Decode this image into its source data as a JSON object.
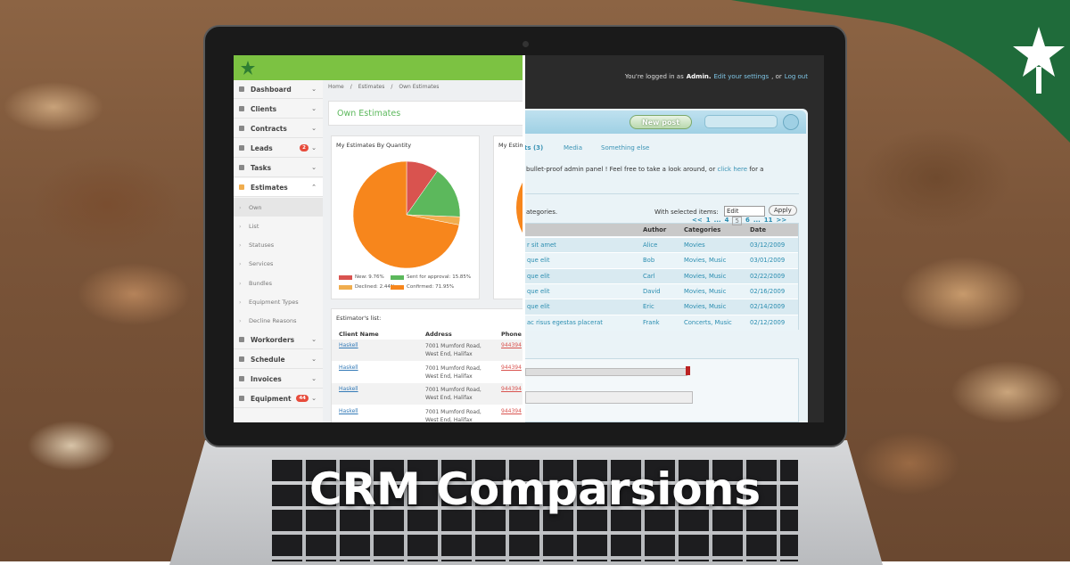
{
  "title": "CRM Comparsions",
  "left_app": {
    "sidebar": [
      {
        "label": "Dashboard"
      },
      {
        "label": "Clients"
      },
      {
        "label": "Contracts"
      },
      {
        "label": "Leads",
        "badge": "2"
      },
      {
        "label": "Tasks"
      },
      {
        "label": "Estimates"
      }
    ],
    "estimates_submenu": [
      "Own",
      "List",
      "Statuses",
      "Services",
      "Bundles",
      "Equipment Types",
      "Decline Reasons"
    ],
    "sidebar_bottom": [
      {
        "label": "Workorders"
      },
      {
        "label": "Schedule"
      },
      {
        "label": "Invoices"
      },
      {
        "label": "Equipment",
        "badge": "44"
      }
    ],
    "breadcrumb": [
      "Home",
      "Estimates",
      "Own Estimates"
    ],
    "heading": "Own Estimates",
    "pie": {
      "title": "My Estimates By Quantity",
      "slices": [
        {
          "label": "New: 9.76%",
          "value": 9.76,
          "color": "#d9534f"
        },
        {
          "label": "Sent for approval: 15.85%",
          "value": 15.85,
          "color": "#5cb85c"
        },
        {
          "label": "Declined: 2.44%",
          "value": 2.44,
          "color": "#f0ad4e"
        },
        {
          "label": "Confirmed: 71.95%",
          "value": 71.95,
          "color": "#f7861c"
        }
      ]
    },
    "second_panel_title": "My Estimates",
    "estimators_list": {
      "title": "Estimator's list:",
      "columns": [
        "Client Name",
        "Address",
        "Phone"
      ],
      "rows": [
        [
          "Haskell",
          "7001 Mumford Road, West End, Halifax",
          "944394"
        ],
        [
          "Haskell",
          "7001 Mumford Road, West End, Halifax",
          "944394"
        ],
        [
          "Haskell",
          "7001 Mumford Road, West End, Halifax",
          "944394"
        ],
        [
          "Haskell",
          "7001 Mumford Road, West End, Halifax",
          "944394"
        ]
      ]
    }
  },
  "right_app": {
    "login": [
      "You're logged in as",
      "Admin.",
      "Edit your settings",
      ", or",
      "Log out"
    ],
    "new_post": "New post",
    "tabs": [
      "ts (3)",
      "Media",
      "Something else"
    ],
    "intro": [
      "bullet-proof admin panel ! Feel free to take a look around, or",
      "click here",
      "for a"
    ],
    "categories_note": "ategories.",
    "with_selected": "With selected items:",
    "select_value": "Edit",
    "apply": "Apply",
    "columns": [
      "Author",
      "Categories",
      "Date"
    ],
    "rows": [
      [
        "r sit amet",
        "Alice",
        "Movies",
        "03/12/2009"
      ],
      [
        "que elit",
        "Bob",
        "Movies, Music",
        "03/01/2009"
      ],
      [
        "que elit",
        "Carl",
        "Movies, Music",
        "02/22/2009"
      ],
      [
        "que elit",
        "David",
        "Movies, Music",
        "02/16/2009"
      ],
      [
        "que elit",
        "Eric",
        "Movies, Music",
        "02/14/2009"
      ],
      [
        "ac risus egestas placerat",
        "Frank",
        "Concerts, Music",
        "02/12/2009"
      ]
    ],
    "pagination": [
      "<<",
      "1",
      "...",
      "4",
      "5",
      "6",
      "...",
      "11",
      ">>"
    ]
  }
}
